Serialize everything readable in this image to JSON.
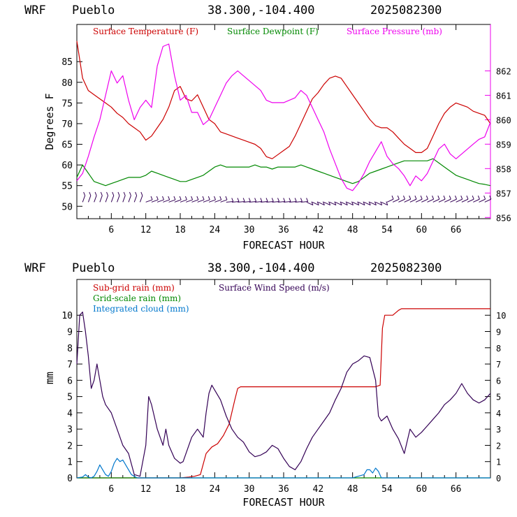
{
  "chart_data": [
    {
      "type": "line",
      "header": {
        "model": "WRF",
        "station": "Pueblo",
        "coords": "38.300,-104.400",
        "init": "2025082300"
      },
      "xlabel": "FORECAST HOUR",
      "ylabel": "Degrees F",
      "xlim": [
        0,
        72
      ],
      "ylim": [
        47,
        94
      ],
      "y2lim": [
        855.95,
        863.9
      ],
      "x_ticks": [
        "6",
        "12",
        "18",
        "24",
        "30",
        "36",
        "42",
        "48",
        "54",
        "60",
        "66"
      ],
      "y_ticks": [
        "50",
        "55",
        "60",
        "65",
        "70",
        "75",
        "80",
        "85"
      ],
      "y2_ticks": [
        "856",
        "857",
        "858",
        "859",
        "860",
        "861",
        "862"
      ],
      "legend": [
        "Surface Temperature (F)",
        "Surface Dewpoint (F)",
        "Surface Pressure (mb)"
      ],
      "colors": {
        "temp": "#cc0000",
        "dew": "#008800",
        "pres": "#ee00ee",
        "barb": "#330055"
      },
      "series": [
        {
          "name": "Surface Temperature (F)",
          "axis": "left",
          "x": [
            0,
            1,
            2,
            3,
            4,
            5,
            6,
            7,
            8,
            9,
            10,
            11,
            12,
            13,
            14,
            15,
            16,
            17,
            18,
            19,
            20,
            21,
            22,
            23,
            24,
            25,
            26,
            27,
            28,
            29,
            30,
            31,
            32,
            33,
            34,
            35,
            36,
            37,
            38,
            39,
            40,
            41,
            42,
            43,
            44,
            45,
            46,
            47,
            48,
            49,
            50,
            51,
            52,
            53,
            54,
            55,
            56,
            57,
            58,
            59,
            60,
            61,
            62,
            63,
            64,
            65,
            66,
            67,
            68,
            69,
            70,
            71,
            72
          ],
          "y": [
            90,
            81,
            78,
            77,
            76,
            75,
            74,
            72.5,
            71.5,
            70,
            69,
            68,
            66,
            67,
            69,
            71,
            74,
            78,
            79,
            76,
            75.5,
            77,
            74,
            71,
            70,
            68,
            67.5,
            67,
            66.5,
            66,
            65.5,
            65,
            64,
            62,
            61.5,
            62.5,
            63.5,
            64.5,
            67,
            70,
            73,
            76,
            77.5,
            79.5,
            81,
            81.5,
            81,
            79,
            77,
            75,
            73,
            71,
            69.5,
            69,
            69,
            68,
            66.5,
            65,
            64,
            63,
            63,
            64,
            67,
            70,
            72.5,
            74,
            75,
            74.5,
            74,
            73,
            72.5,
            72,
            70
          ]
        },
        {
          "name": "Surface Dewpoint (F)",
          "axis": "left",
          "x": [
            0,
            1,
            2,
            3,
            4,
            5,
            6,
            7,
            8,
            9,
            10,
            11,
            12,
            13,
            14,
            15,
            16,
            17,
            18,
            19,
            20,
            21,
            22,
            23,
            24,
            25,
            26,
            27,
            28,
            29,
            30,
            31,
            32,
            33,
            34,
            35,
            36,
            37,
            38,
            39,
            40,
            41,
            42,
            43,
            44,
            45,
            46,
            47,
            48,
            49,
            50,
            51,
            52,
            53,
            54,
            55,
            56,
            57,
            58,
            59,
            60,
            61,
            62,
            63,
            64,
            65,
            66,
            67,
            68,
            69,
            70,
            71,
            72
          ],
          "y": [
            57,
            60,
            58,
            56,
            55.5,
            55,
            55.5,
            56,
            56.5,
            57,
            57,
            57,
            57.5,
            58.5,
            58,
            57.5,
            57,
            56.5,
            56,
            56,
            56.5,
            57,
            57.5,
            58.5,
            59.5,
            60,
            59.5,
            59.5,
            59.5,
            59.5,
            59.5,
            60,
            59.5,
            59.5,
            59,
            59.5,
            59.5,
            59.5,
            59.5,
            60,
            59.5,
            59,
            58.5,
            58,
            57.5,
            57,
            56.5,
            56,
            55.5,
            56,
            57,
            58,
            58.5,
            59,
            59.5,
            60,
            60.5,
            61,
            61,
            61,
            61,
            61,
            61.5,
            60.5,
            59.5,
            58.5,
            57.5,
            57,
            56.5,
            56,
            55.5,
            55.3,
            55
          ]
        },
        {
          "name": "Surface Pressure (mb)",
          "axis": "right",
          "x": [
            0,
            1,
            2,
            3,
            4,
            5,
            6,
            7,
            8,
            9,
            10,
            11,
            12,
            13,
            14,
            15,
            16,
            17,
            18,
            19,
            20,
            21,
            22,
            23,
            24,
            25,
            26,
            27,
            28,
            29,
            30,
            31,
            32,
            33,
            34,
            35,
            36,
            37,
            38,
            39,
            40,
            41,
            42,
            43,
            44,
            45,
            46,
            47,
            48,
            49,
            50,
            51,
            52,
            53,
            54,
            55,
            56,
            57,
            58,
            59,
            60,
            61,
            62,
            63,
            64,
            65,
            66,
            67,
            68,
            69,
            70,
            71,
            72
          ],
          "y": [
            857.5,
            857.8,
            858.5,
            859.3,
            860,
            861,
            862,
            861.5,
            861.8,
            860.8,
            860,
            860.5,
            860.8,
            860.5,
            862.2,
            863,
            863.1,
            861.8,
            860.8,
            861,
            860.3,
            860.3,
            859.8,
            860,
            860.5,
            861,
            861.5,
            861.8,
            862,
            861.8,
            861.6,
            861.4,
            861.2,
            860.8,
            860.7,
            860.7,
            860.7,
            860.8,
            860.9,
            861.2,
            861,
            860.5,
            860,
            859.5,
            858.8,
            858.2,
            857.6,
            857.2,
            857.1,
            857.4,
            857.8,
            858.3,
            858.7,
            859.1,
            858.5,
            858.2,
            858,
            857.7,
            857.3,
            857.7,
            857.5,
            857.8,
            858.3,
            858.8,
            859,
            858.6,
            858.4,
            858.6,
            858.8,
            859,
            859.2,
            859.3,
            859.9
          ]
        }
      ],
      "wind_barbs_y": 51
    },
    {
      "type": "line",
      "header": {
        "model": "WRF",
        "station": "Pueblo",
        "coords": "38.300,-104.400",
        "init": "2025082300"
      },
      "xlabel": "FORECAST HOUR",
      "ylabel": "mm",
      "xlim": [
        0,
        72
      ],
      "ylim": [
        0,
        12.2
      ],
      "x_ticks": [
        "6",
        "12",
        "18",
        "24",
        "30",
        "36",
        "42",
        "48",
        "54",
        "60",
        "66"
      ],
      "y_ticks": [
        "0",
        "1",
        "2",
        "3",
        "4",
        "5",
        "6",
        "7",
        "8",
        "9",
        "10"
      ],
      "y2_ticks": [
        "0",
        "1",
        "2",
        "3",
        "4",
        "5",
        "6",
        "7",
        "8",
        "9",
        "10"
      ],
      "legend": [
        "Sub-grid rain (mm)",
        "Grid-scale rain (mm)",
        "Integrated cloud (mm)",
        "Surface Wind Speed (m/s)"
      ],
      "colors": {
        "subgrid": "#cc0000",
        "grid": "#008800",
        "cloud": "#0077cc",
        "wind": "#330055"
      },
      "series": [
        {
          "name": "Sub-grid rain (mm)",
          "axis": "left",
          "x": [
            0,
            18,
            19.5,
            20.5,
            21.5,
            22.5,
            23.5,
            24.5,
            25.5,
            26.5,
            27.5,
            28,
            28.5,
            30,
            40,
            50,
            52,
            52.8,
            53.2,
            53.6,
            55,
            56,
            56.5,
            60,
            66,
            72
          ],
          "y": [
            0,
            0,
            0.05,
            0.1,
            0.2,
            1.5,
            1.9,
            2.1,
            2.6,
            3.3,
            4.8,
            5.5,
            5.6,
            5.6,
            5.6,
            5.6,
            5.6,
            5.7,
            9.2,
            10,
            10,
            10.3,
            10.4,
            10.4,
            10.4,
            10.4
          ]
        },
        {
          "name": "Grid-scale rain (mm)",
          "axis": "left",
          "x": [
            0,
            72
          ],
          "y": [
            0,
            0
          ]
        },
        {
          "name": "Integrated cloud (mm)",
          "axis": "left",
          "x": [
            0,
            1,
            1.5,
            2,
            2.5,
            3,
            3.5,
            4,
            4.5,
            5,
            5.5,
            6,
            6.5,
            7,
            7.5,
            8,
            8.5,
            9,
            9.5,
            10,
            10.5,
            11,
            20,
            30,
            40,
            48,
            50,
            50.5,
            51,
            51.5,
            52,
            52.5,
            53,
            54,
            60,
            72
          ],
          "y": [
            0,
            0.05,
            0.2,
            0.05,
            0,
            0.1,
            0.4,
            0.8,
            0.5,
            0.2,
            0.1,
            0.4,
            0.9,
            1.2,
            1.0,
            1.1,
            0.8,
            0.5,
            0.2,
            0.1,
            0,
            0,
            0,
            0,
            0,
            0,
            0.2,
            0.5,
            0.5,
            0.3,
            0.6,
            0.4,
            0,
            0,
            0,
            0
          ]
        },
        {
          "name": "Surface Wind Speed (m/s)",
          "axis": "right",
          "x": [
            0,
            0.5,
            1,
            1.5,
            2,
            2.5,
            3,
            3.5,
            4,
            4.5,
            5,
            6,
            7,
            8,
            9,
            10,
            11,
            12,
            12.5,
            13,
            14,
            15,
            15.5,
            16,
            17,
            18,
            18.5,
            19,
            20,
            21,
            22,
            22.5,
            23,
            23.5,
            24,
            25,
            26,
            27,
            28,
            29,
            30,
            31,
            32,
            33,
            34,
            35,
            36,
            37,
            38,
            39,
            40,
            41,
            42,
            43,
            44,
            45,
            46,
            47,
            48,
            49,
            50,
            51,
            52,
            52.5,
            53,
            54,
            55,
            56,
            57,
            58,
            59,
            60,
            61,
            62,
            63,
            64,
            65,
            66,
            67,
            68,
            69,
            70,
            71,
            72
          ],
          "y": [
            7,
            10,
            10.2,
            9,
            7.5,
            5.5,
            6,
            7,
            6,
            5,
            4.5,
            4,
            3,
            2,
            1.5,
            0.2,
            0.1,
            2,
            5,
            4.5,
            3,
            2,
            3,
            2,
            1.2,
            0.9,
            1,
            1.5,
            2.5,
            3,
            2.5,
            4,
            5.2,
            5.7,
            5.4,
            4.8,
            3.8,
            3,
            2.5,
            2.2,
            1.6,
            1.3,
            1.4,
            1.6,
            2,
            1.8,
            1.2,
            0.7,
            0.5,
            1,
            1.8,
            2.5,
            3,
            3.5,
            4,
            4.8,
            5.5,
            6.5,
            7,
            7.2,
            7.5,
            7.4,
            6,
            3.8,
            3.5,
            3.8,
            3,
            2.4,
            1.5,
            3,
            2.5,
            2.8,
            3.2,
            3.6,
            4,
            4.5,
            4.8,
            5.2,
            5.8,
            5.2,
            4.8,
            4.6,
            4.8,
            5.2
          ]
        }
      ]
    }
  ]
}
